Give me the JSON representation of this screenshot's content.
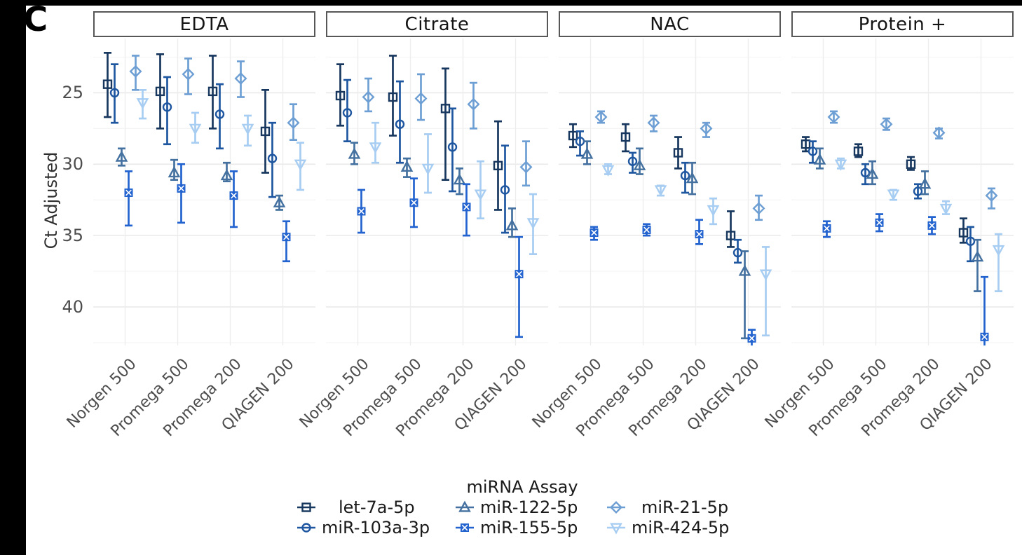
{
  "figure": {
    "panel_label": "C"
  },
  "chart_data": {
    "type": "scatter",
    "subtype": "dodged points with errorbars, faceted",
    "ylabel": "Ct Adjusted",
    "yticks": [
      25,
      30,
      35,
      40
    ],
    "minor_yticks": [
      22.5,
      27.5,
      32.5,
      37.5,
      42.5
    ],
    "ydomain": [
      21.2,
      42.7
    ],
    "y_axis_inverted": true,
    "grid": true,
    "facets": [
      "EDTA",
      "Citrate",
      "NAC",
      "Protein +"
    ],
    "categories": [
      "Norgen 500",
      "Promega 500",
      "Promega 200",
      "QIAGEN 200"
    ],
    "legend": {
      "title": "miRNA Assay",
      "position": "bottom",
      "display_order": [
        0,
        2,
        4,
        1,
        3,
        5
      ]
    },
    "value_format": "[mean_ct, ci_low, ci_high] per category, facet order as in facets[]",
    "colors": {
      "grid_major": "#e9e9e9",
      "grid_minor": "#f4f4f4",
      "grid_vertical": "#ededed",
      "axis_text": "#4d4d4d",
      "header_border": "#575757",
      "strip_black": "#000000"
    },
    "series": [
      {
        "name": "let-7a-5p",
        "shape": "square",
        "color": "#17375e",
        "values": [
          [
            [
              24.4,
              22.2,
              26.7
            ],
            [
              24.9,
              22.3,
              27.5
            ],
            [
              24.9,
              22.4,
              27.5
            ],
            [
              27.7,
              24.8,
              30.6
            ]
          ],
          [
            [
              25.2,
              23.0,
              27.3
            ],
            [
              25.3,
              22.4,
              28.0
            ],
            [
              26.1,
              23.3,
              31.1
            ],
            [
              30.1,
              27.0,
              33.2
            ]
          ],
          [
            [
              28.0,
              27.2,
              28.8
            ],
            [
              28.1,
              27.2,
              29.1
            ],
            [
              29.2,
              28.1,
              30.3
            ],
            [
              35.0,
              33.3,
              35.8
            ]
          ],
          [
            [
              28.6,
              28.1,
              29.1
            ],
            [
              29.1,
              28.6,
              29.5
            ],
            [
              30.0,
              29.5,
              30.4
            ],
            [
              34.8,
              33.8,
              35.5
            ]
          ]
        ]
      },
      {
        "name": "miR-103a-3p",
        "shape": "circle",
        "color": "#1e56a0",
        "values": [
          [
            [
              25.0,
              23.0,
              27.1
            ],
            [
              26.0,
              23.9,
              28.6
            ],
            [
              26.5,
              24.4,
              28.9
            ],
            [
              29.6,
              27.1,
              32.3
            ]
          ],
          [
            [
              26.4,
              24.1,
              28.4
            ],
            [
              27.2,
              24.2,
              29.9
            ],
            [
              28.8,
              26.1,
              31.9
            ],
            [
              31.8,
              28.7,
              34.8
            ]
          ],
          [
            [
              28.4,
              27.7,
              29.4
            ],
            [
              29.8,
              29.2,
              30.6
            ],
            [
              30.8,
              29.9,
              32.0
            ],
            [
              36.2,
              35.3,
              36.9
            ]
          ],
          [
            [
              29.1,
              28.4,
              29.9
            ],
            [
              30.6,
              30.0,
              31.4
            ],
            [
              31.9,
              31.4,
              32.4
            ],
            [
              35.4,
              34.4,
              36.8
            ]
          ]
        ]
      },
      {
        "name": "miR-122-5p",
        "shape": "triangle-up",
        "color": "#44719f",
        "values": [
          [
            [
              29.5,
              28.9,
              30.1
            ],
            [
              30.6,
              29.7,
              31.1
            ],
            [
              30.8,
              29.9,
              31.2
            ],
            [
              32.7,
              32.2,
              33.2
            ]
          ],
          [
            [
              29.3,
              28.5,
              30.0
            ],
            [
              30.2,
              29.6,
              30.9
            ],
            [
              31.1,
              30.3,
              32.1
            ],
            [
              34.3,
              33.1,
              35.1
            ]
          ],
          [
            [
              29.3,
              28.4,
              30.0
            ],
            [
              30.1,
              28.9,
              30.7
            ],
            [
              31.0,
              29.9,
              32.1
            ],
            [
              37.5,
              36.1,
              42.2
            ]
          ],
          [
            [
              29.7,
              28.9,
              30.3
            ],
            [
              30.7,
              29.8,
              31.4
            ],
            [
              31.4,
              30.5,
              32.1
            ],
            [
              36.5,
              35.3,
              38.9
            ]
          ]
        ]
      },
      {
        "name": "miR-155-5p",
        "shape": "square-x",
        "color": "#2263cf",
        "values": [
          [
            [
              32.0,
              30.5,
              34.3
            ],
            [
              31.7,
              30.0,
              34.1
            ],
            [
              32.2,
              30.5,
              34.4
            ],
            [
              35.1,
              34.0,
              36.8
            ]
          ],
          [
            [
              33.3,
              31.8,
              34.8
            ],
            [
              32.7,
              31.0,
              34.4
            ],
            [
              33.0,
              31.4,
              35.0
            ],
            [
              37.7,
              35.1,
              42.1
            ]
          ],
          [
            [
              34.8,
              34.4,
              35.3
            ],
            [
              34.6,
              34.2,
              35.0
            ],
            [
              34.9,
              33.9,
              35.6
            ],
            [
              42.2,
              41.6,
              43.0
            ]
          ],
          [
            [
              34.5,
              34.0,
              35.1
            ],
            [
              34.1,
              33.5,
              34.7
            ],
            [
              34.3,
              33.7,
              34.9
            ],
            [
              42.1,
              37.9,
              43.2
            ]
          ]
        ]
      },
      {
        "name": "miR-21-5p",
        "shape": "diamond",
        "color": "#6e9fd4",
        "values": [
          [
            [
              23.5,
              22.4,
              24.8
            ],
            [
              23.7,
              22.6,
              25.1
            ],
            [
              24.0,
              22.8,
              25.3
            ],
            [
              27.1,
              25.8,
              28.3
            ]
          ],
          [
            [
              25.3,
              24.0,
              26.3
            ],
            [
              25.4,
              23.7,
              26.9
            ],
            [
              25.8,
              24.3,
              27.5
            ],
            [
              30.2,
              28.4,
              31.5
            ]
          ],
          [
            [
              26.7,
              26.3,
              27.1
            ],
            [
              27.1,
              26.6,
              27.7
            ],
            [
              27.5,
              27.1,
              28.1
            ],
            [
              33.1,
              32.2,
              33.9
            ]
          ],
          [
            [
              26.7,
              26.3,
              27.1
            ],
            [
              27.2,
              26.8,
              27.6
            ],
            [
              27.8,
              27.5,
              28.2
            ],
            [
              32.2,
              31.7,
              33.1
            ]
          ]
        ]
      },
      {
        "name": "miR-424-5p",
        "shape": "triangle-down",
        "color": "#a7cdf2",
        "values": [
          [
            [
              25.7,
              24.8,
              26.8
            ],
            [
              27.5,
              26.4,
              28.5
            ],
            [
              27.5,
              26.6,
              28.7
            ],
            [
              30.0,
              28.5,
              31.8
            ]
          ],
          [
            [
              28.8,
              27.1,
              29.9
            ],
            [
              30.3,
              27.9,
              32.0
            ],
            [
              32.1,
              29.8,
              33.8
            ],
            [
              34.1,
              32.1,
              36.3
            ]
          ],
          [
            [
              30.4,
              30.0,
              30.7
            ],
            [
              31.8,
              31.5,
              32.2
            ],
            [
              33.2,
              32.4,
              34.2
            ],
            [
              37.7,
              35.8,
              42.0
            ]
          ],
          [
            [
              30.0,
              29.6,
              30.3
            ],
            [
              32.1,
              31.8,
              32.5
            ],
            [
              33.1,
              32.6,
              33.5
            ],
            [
              36.0,
              34.9,
              38.9
            ]
          ]
        ]
      }
    ]
  }
}
